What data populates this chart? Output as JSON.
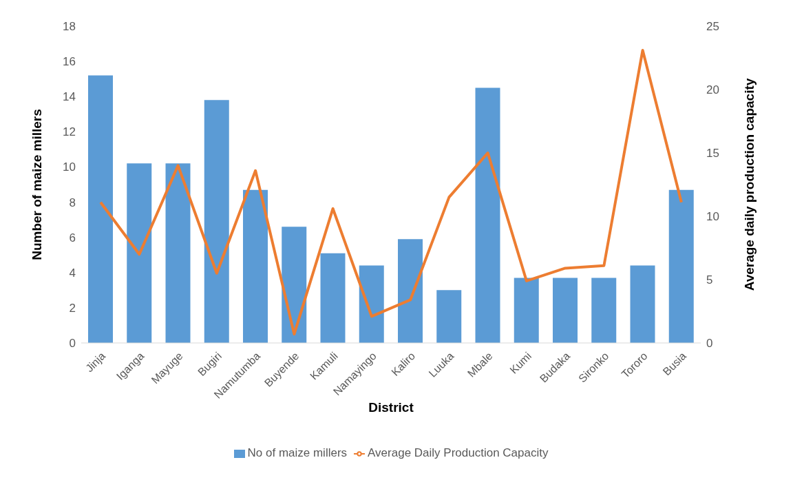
{
  "chart_data": {
    "type": "bar",
    "xlabel": "District",
    "ylabel": "Number of maize millers",
    "y2label": "Average daily production capacity",
    "categories": [
      "Jinja",
      "Iganga",
      "Mayuge",
      "Bugiri",
      "Namutumba",
      "Buyende",
      "Kamuli",
      "Namayingo",
      "Kaliro",
      "Luuka",
      "Mbale",
      "Kumi",
      "Budaka",
      "Sironko",
      "Tororo",
      "Busia"
    ],
    "series": [
      {
        "name": "No of maize millers",
        "color": "#5b9bd5",
        "values": [
          15.2,
          10.2,
          10.2,
          13.8,
          8.7,
          6.6,
          5.1,
          4.4,
          5.9,
          3.0,
          14.5,
          3.7,
          3.7,
          3.7,
          4.4,
          8.7
        ]
      },
      {
        "name": "Average Daily Production Capacity",
        "type": "line",
        "axis": "y2",
        "color": "#ed7d31",
        "values": [
          11.1,
          7.0,
          14.0,
          5.5,
          13.6,
          0.7,
          10.6,
          2.1,
          3.4,
          11.5,
          15.0,
          4.9,
          5.9,
          6.1,
          23.1,
          11.1
        ]
      }
    ],
    "ylim": [
      0,
      18
    ],
    "yticks": [
      0,
      2,
      4,
      6,
      8,
      10,
      12,
      14,
      16,
      18
    ],
    "y2lim": [
      0,
      25
    ],
    "y2ticks": [
      0,
      5,
      10,
      15,
      20,
      25
    ],
    "grid": false,
    "legend": "bottom"
  }
}
